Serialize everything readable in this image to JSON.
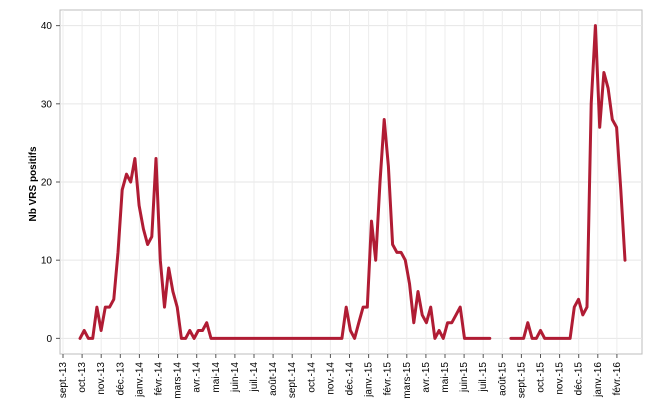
{
  "chart_data": {
    "type": "line",
    "title": "",
    "xlabel": "",
    "ylabel": "Nb VRS positifs",
    "ylim": [
      -2,
      42
    ],
    "yticks": [
      0,
      10,
      20,
      30,
      40
    ],
    "grid": true,
    "legend": "none",
    "line_color": "#b01c34",
    "x_labels": [
      "sept.-13",
      "oct.-13",
      "nov.-13",
      "déc.-13",
      "janv.-14",
      "févr.-14",
      "mars-14",
      "avr.-14",
      "mai-14",
      "juin-14",
      "juil.-14",
      "août-14",
      "sept.-14",
      "oct.-14",
      "nov.-14",
      "déc.-14",
      "janv.-15",
      "févr.-15",
      "mars-15",
      "avr.-15",
      "mai-15",
      "juin-15",
      "juil.-15",
      "août-15",
      "sept.-15",
      "oct.-15",
      "nov.-15",
      "déc.-15",
      "janv.-16",
      "févr.-16"
    ],
    "series": [
      {
        "values": [
          0,
          1,
          0,
          0,
          4,
          1,
          4,
          4,
          5,
          11,
          19,
          21,
          20,
          23,
          17,
          14,
          12,
          13,
          23,
          10,
          4,
          9,
          6,
          4,
          0,
          0,
          1,
          0,
          1,
          1,
          2,
          0,
          0,
          0,
          0,
          0,
          0,
          0,
          0,
          0,
          0,
          0,
          0,
          0,
          0,
          0,
          0,
          0,
          0,
          0,
          0,
          0,
          0,
          0,
          0,
          0,
          0,
          0,
          0,
          0,
          0,
          0,
          0,
          4,
          1,
          0,
          2,
          4,
          4,
          15,
          10,
          20,
          28,
          22,
          12,
          11,
          11,
          10,
          7,
          2,
          6,
          3,
          2,
          4,
          0,
          1,
          0,
          2,
          2,
          3,
          4,
          0,
          0,
          0,
          0,
          0,
          0,
          0,
          null,
          null,
          null,
          null,
          0,
          0,
          0,
          0,
          2,
          0,
          0,
          1,
          0,
          0,
          0,
          0,
          0,
          0,
          0,
          4,
          5,
          3,
          4,
          30,
          40,
          27,
          34,
          32,
          28,
          27,
          19,
          10
        ]
      }
    ]
  }
}
